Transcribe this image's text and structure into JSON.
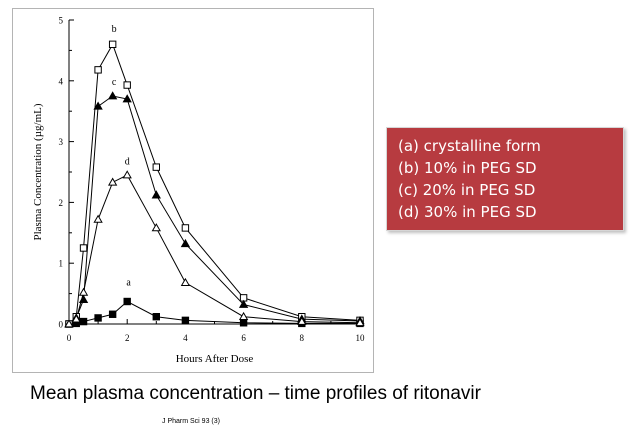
{
  "chart_data": {
    "type": "line",
    "title": "",
    "xlabel": "Hours After Dose",
    "ylabel": "Plasma Concentration (µg/mL)",
    "xlim": [
      0,
      10
    ],
    "ylim": [
      0,
      5
    ],
    "xticks": [
      0,
      2,
      4,
      6,
      8,
      10
    ],
    "yticks": [
      0,
      1,
      2,
      3,
      4,
      5
    ],
    "series": [
      {
        "name": "a",
        "marker": "filled-square",
        "x": [
          0,
          0.25,
          0.5,
          1,
          1.5,
          2,
          3,
          4,
          6,
          8,
          10
        ],
        "values": [
          0,
          0.01,
          0.04,
          0.1,
          0.16,
          0.37,
          0.12,
          0.06,
          0.02,
          0.01,
          0.01
        ]
      },
      {
        "name": "b",
        "marker": "open-square",
        "x": [
          0,
          0.25,
          0.5,
          1,
          1.5,
          2,
          3,
          4,
          6,
          8,
          10
        ],
        "values": [
          0,
          0.12,
          1.25,
          4.18,
          4.6,
          3.93,
          2.58,
          1.58,
          0.43,
          0.12,
          0.06
        ]
      },
      {
        "name": "c",
        "marker": "filled-triangle",
        "x": [
          0,
          0.25,
          0.5,
          1,
          1.5,
          2,
          3,
          4,
          6,
          8,
          10
        ],
        "values": [
          0,
          0.1,
          0.4,
          3.58,
          3.75,
          3.7,
          2.12,
          1.32,
          0.32,
          0.08,
          0.05
        ]
      },
      {
        "name": "d",
        "marker": "open-triangle",
        "x": [
          0,
          0.25,
          0.5,
          1,
          1.5,
          2,
          3,
          4,
          6,
          8,
          10
        ],
        "values": [
          0,
          0.08,
          0.52,
          1.72,
          2.33,
          2.45,
          1.58,
          0.68,
          0.12,
          0.04,
          0.02
        ]
      }
    ],
    "annotations": [
      {
        "text": "a",
        "x": 2.05,
        "y": 0.63
      },
      {
        "text": "b",
        "x": 1.55,
        "y": 4.8
      },
      {
        "text": "c",
        "x": 1.55,
        "y": 3.93
      },
      {
        "text": "d",
        "x": 2.0,
        "y": 2.62
      }
    ]
  },
  "legend": {
    "lines": [
      "(a) crystalline form",
      "(b) 10% in PEG SD",
      "(c) 20% in PEG SD",
      "(d) 30% in PEG SD"
    ]
  },
  "caption": "Mean plasma concentration – time profiles of ritonavir",
  "citation": "J Pharm Sci 93 (3)"
}
